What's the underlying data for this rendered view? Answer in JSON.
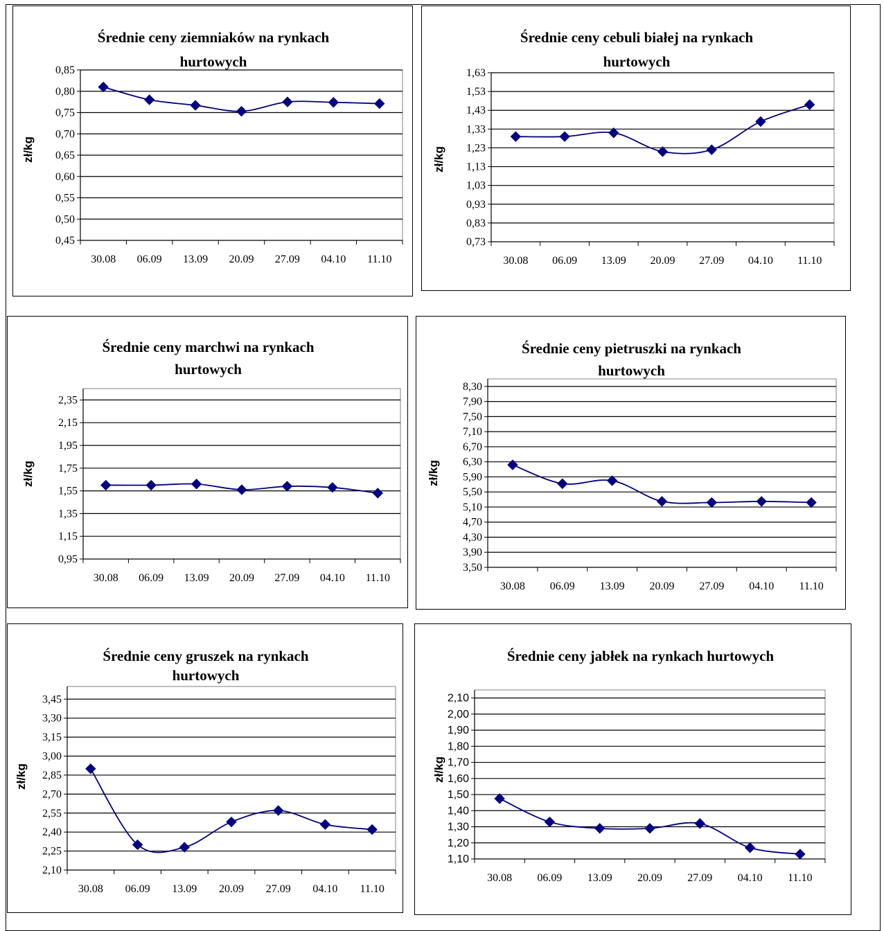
{
  "chart_data": [
    {
      "type": "line",
      "title": [
        "Średnie ceny ziemniaków  na rynkach",
        "hurtowych"
      ],
      "ylabel": "zł/kg",
      "categories": [
        "30.08",
        "06.09",
        "13.09",
        "20.09",
        "27.09",
        "04.10",
        "11.10"
      ],
      "yticks": [
        "0,45",
        "0,50",
        "0,55",
        "0,60",
        "0,65",
        "0,70",
        "0,75",
        "0,80",
        "0,85"
      ],
      "ylim": [
        0.45,
        0.85
      ],
      "series": [
        {
          "values": [
            0.81,
            0.78,
            0.767,
            0.753,
            0.775,
            0.774,
            0.771
          ]
        }
      ],
      "color": "#000080"
    },
    {
      "type": "line",
      "title": [
        "Średnie ceny cebuli białej na rynkach",
        "hurtowych"
      ],
      "ylabel": "zł/kg",
      "categories": [
        "30.08",
        "06.09",
        "13.09",
        "20.09",
        "27.09",
        "04.10",
        "11.10"
      ],
      "yticks": [
        "0,73",
        "0,83",
        "0,93",
        "1,03",
        "1,13",
        "1,23",
        "1,33",
        "1,43",
        "1,53",
        "1,63"
      ],
      "ylim": [
        0.73,
        1.63
      ],
      "series": [
        {
          "values": [
            1.29,
            1.29,
            1.31,
            1.21,
            1.22,
            1.37,
            1.46
          ]
        }
      ],
      "color": "#000080"
    },
    {
      "type": "line",
      "title": [
        "Średnie ceny marchwi  na rynkach",
        "hurtowych"
      ],
      "ylabel": "zł/kg",
      "categories": [
        "30.08",
        "06.09",
        "13.09",
        "20.09",
        "27.09",
        "04.10",
        "11.10"
      ],
      "yticks": [
        "0,95",
        "1,15",
        "1,35",
        "1,55",
        "1,75",
        "1,95",
        "2,15",
        "2,35"
      ],
      "ylim": [
        0.95,
        2.45
      ],
      "series": [
        {
          "values": [
            1.6,
            1.6,
            1.61,
            1.56,
            1.59,
            1.58,
            1.53
          ]
        }
      ],
      "color": "#000080"
    },
    {
      "type": "line",
      "title": [
        "Średnie ceny pietruszki na rynkach",
        "hurtowych"
      ],
      "ylabel": "zł/kg",
      "categories": [
        "30.08",
        "06.09",
        "13.09",
        "20.09",
        "27.09",
        "04.10",
        "11.10"
      ],
      "yticks": [
        "3,50",
        "3,90",
        "4,30",
        "4,70",
        "5,10",
        "5,50",
        "5,90",
        "6,30",
        "6,70",
        "7,10",
        "7,50",
        "7,90",
        "8,30"
      ],
      "ylim": [
        3.5,
        8.5
      ],
      "series": [
        {
          "values": [
            6.22,
            5.72,
            5.8,
            5.25,
            5.22,
            5.25,
            5.22
          ]
        }
      ],
      "color": "#000080"
    },
    {
      "type": "line",
      "title": [
        "Średnie ceny gruszek na rynkach",
        "hurtowych"
      ],
      "ylabel": "zł/kg",
      "categories": [
        "30.08",
        "06.09",
        "13.09",
        "20.09",
        "27.09",
        "04.10",
        "11.10"
      ],
      "yticks": [
        "2,10",
        "2,25",
        "2,40",
        "2,55",
        "2,70",
        "2,85",
        "3,00",
        "3,15",
        "3,30",
        "3,45"
      ],
      "ylim": [
        2.1,
        3.55
      ],
      "series": [
        {
          "values": [
            2.9,
            2.3,
            2.28,
            2.48,
            2.57,
            2.46,
            2.42
          ]
        }
      ],
      "color": "#000080"
    },
    {
      "type": "line",
      "title": [
        "Średnie ceny jabłek  na rynkach hurtowych"
      ],
      "ylabel": "zł/kg",
      "categories": [
        "30.08",
        "06.09",
        "13.09",
        "20.09",
        "27.09",
        "04.10",
        "11.10"
      ],
      "yticks": [
        "1,10",
        "1,20",
        "1,30",
        "1,40",
        "1,50",
        "1,60",
        "1,70",
        "1,80",
        "1,90",
        "2,00",
        "2,10"
      ],
      "ylim": [
        1.1,
        2.15
      ],
      "series": [
        {
          "values": [
            1.475,
            1.33,
            1.29,
            1.29,
            1.32,
            1.17,
            1.13
          ]
        }
      ],
      "color": "#000080"
    }
  ]
}
